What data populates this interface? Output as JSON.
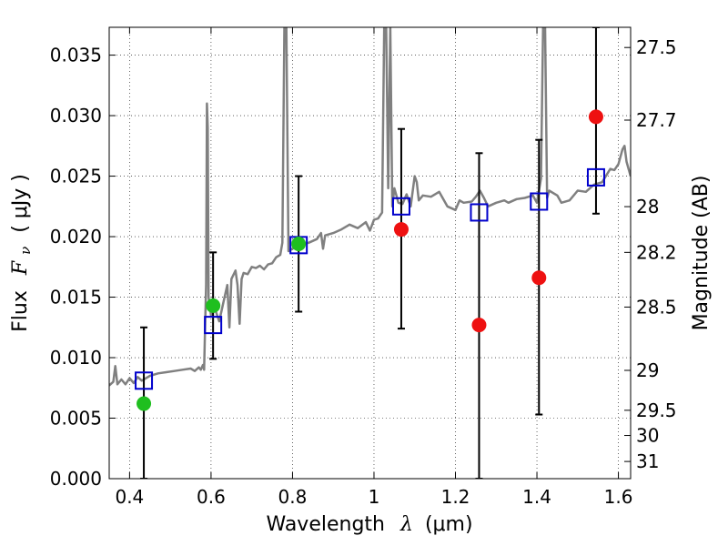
{
  "chart_data": {
    "type": "scatter",
    "xlabel": "Wavelength",
    "xlabel_symbol": "λ",
    "xlabel_unit": "(μm)",
    "ylabel": "Flux",
    "ylabel_symbol": "F",
    "ylabel_subscript": "ν",
    "ylabel_unit": "( μJy )",
    "y2label": "Magnitude (AB)",
    "xlim": [
      0.35,
      1.63
    ],
    "ylim": [
      0.0,
      0.0373
    ],
    "grid": true,
    "x_ticks": [
      0.4,
      0.6,
      0.8,
      1.0,
      1.2,
      1.4,
      1.6
    ],
    "x_tick_labels": [
      "0.4",
      "0.6",
      "0.8",
      "1",
      "1.2",
      "1.4",
      "1.6"
    ],
    "y_ticks": [
      0.0,
      0.005,
      0.01,
      0.015,
      0.02,
      0.025,
      0.03,
      0.035
    ],
    "y_tick_labels": [
      "0.000",
      "0.005",
      "0.010",
      "0.015",
      "0.020",
      "0.025",
      "0.030",
      "0.035"
    ],
    "y2_tick_labels": [
      "27.5",
      "27.7",
      "28",
      "28.2",
      "28.5",
      "29",
      "29.5",
      "30",
      "31"
    ],
    "y2_tick_flux": [
      0.03563,
      0.02963,
      0.02248,
      0.0187,
      0.01418,
      0.00895,
      0.00565,
      0.00357,
      0.00142
    ],
    "colors": {
      "spectrum": "#808080",
      "green_points": "#1fbf1f",
      "red_points": "#ee1111",
      "model_squares": "#0000cc",
      "error_bars": "#000000"
    },
    "spectrum": [
      [
        0.35,
        0.0077
      ],
      [
        0.36,
        0.008
      ],
      [
        0.365,
        0.0093
      ],
      [
        0.37,
        0.0078
      ],
      [
        0.38,
        0.0082
      ],
      [
        0.39,
        0.0078
      ],
      [
        0.4,
        0.0083
      ],
      [
        0.41,
        0.0079
      ],
      [
        0.42,
        0.0084
      ],
      [
        0.43,
        0.0081
      ],
      [
        0.45,
        0.0085
      ],
      [
        0.47,
        0.0087
      ],
      [
        0.49,
        0.0088
      ],
      [
        0.51,
        0.0089
      ],
      [
        0.53,
        0.009
      ],
      [
        0.55,
        0.0091
      ],
      [
        0.56,
        0.0089
      ],
      [
        0.57,
        0.0092
      ],
      [
        0.575,
        0.009
      ],
      [
        0.58,
        0.0094
      ],
      [
        0.583,
        0.009
      ],
      [
        0.585,
        0.012
      ],
      [
        0.588,
        0.016
      ],
      [
        0.59,
        0.031
      ],
      [
        0.592,
        0.029
      ],
      [
        0.594,
        0.015
      ],
      [
        0.6,
        0.0135
      ],
      [
        0.61,
        0.014
      ],
      [
        0.62,
        0.013
      ],
      [
        0.63,
        0.0145
      ],
      [
        0.64,
        0.016
      ],
      [
        0.645,
        0.0125
      ],
      [
        0.65,
        0.0165
      ],
      [
        0.66,
        0.0172
      ],
      [
        0.665,
        0.016
      ],
      [
        0.67,
        0.0128
      ],
      [
        0.675,
        0.0165
      ],
      [
        0.68,
        0.017
      ],
      [
        0.69,
        0.0169
      ],
      [
        0.7,
        0.0175
      ],
      [
        0.71,
        0.0174
      ],
      [
        0.72,
        0.0176
      ],
      [
        0.73,
        0.0173
      ],
      [
        0.74,
        0.0177
      ],
      [
        0.75,
        0.0178
      ],
      [
        0.76,
        0.0183
      ],
      [
        0.77,
        0.0185
      ],
      [
        0.775,
        0.0195
      ],
      [
        0.78,
        0.0373
      ],
      [
        0.785,
        0.0373
      ],
      [
        0.79,
        0.0188
      ],
      [
        0.8,
        0.019
      ],
      [
        0.82,
        0.0193
      ],
      [
        0.84,
        0.0195
      ],
      [
        0.86,
        0.0198
      ],
      [
        0.87,
        0.0203
      ],
      [
        0.875,
        0.019
      ],
      [
        0.88,
        0.0201
      ],
      [
        0.9,
        0.0203
      ],
      [
        0.92,
        0.0206
      ],
      [
        0.94,
        0.021
      ],
      [
        0.96,
        0.0207
      ],
      [
        0.98,
        0.0212
      ],
      [
        0.99,
        0.0205
      ],
      [
        1.0,
        0.0214
      ],
      [
        1.01,
        0.0215
      ],
      [
        1.02,
        0.022
      ],
      [
        1.025,
        0.0373
      ],
      [
        1.03,
        0.0373
      ],
      [
        1.035,
        0.024
      ],
      [
        1.04,
        0.0373
      ],
      [
        1.045,
        0.0225
      ],
      [
        1.05,
        0.024
      ],
      [
        1.06,
        0.0228
      ],
      [
        1.07,
        0.0227
      ],
      [
        1.08,
        0.0235
      ],
      [
        1.09,
        0.0225
      ],
      [
        1.1,
        0.025
      ],
      [
        1.105,
        0.0245
      ],
      [
        1.11,
        0.023
      ],
      [
        1.12,
        0.0234
      ],
      [
        1.14,
        0.0233
      ],
      [
        1.16,
        0.0237
      ],
      [
        1.18,
        0.0225
      ],
      [
        1.2,
        0.0222
      ],
      [
        1.21,
        0.023
      ],
      [
        1.22,
        0.0228
      ],
      [
        1.24,
        0.0229
      ],
      [
        1.25,
        0.0233
      ],
      [
        1.26,
        0.0238
      ],
      [
        1.27,
        0.0232
      ],
      [
        1.28,
        0.0225
      ],
      [
        1.3,
        0.0228
      ],
      [
        1.32,
        0.023
      ],
      [
        1.33,
        0.0228
      ],
      [
        1.35,
        0.0231
      ],
      [
        1.37,
        0.0232
      ],
      [
        1.39,
        0.0234
      ],
      [
        1.4,
        0.0228
      ],
      [
        1.41,
        0.0248
      ],
      [
        1.415,
        0.0373
      ],
      [
        1.42,
        0.0373
      ],
      [
        1.425,
        0.0232
      ],
      [
        1.43,
        0.0238
      ],
      [
        1.45,
        0.0234
      ],
      [
        1.46,
        0.0228
      ],
      [
        1.48,
        0.023
      ],
      [
        1.5,
        0.0238
      ],
      [
        1.52,
        0.0237
      ],
      [
        1.54,
        0.0243
      ],
      [
        1.56,
        0.0245
      ],
      [
        1.58,
        0.0256
      ],
      [
        1.59,
        0.0255
      ],
      [
        1.6,
        0.026
      ],
      [
        1.61,
        0.0272
      ],
      [
        1.615,
        0.0275
      ],
      [
        1.62,
        0.0262
      ],
      [
        1.63,
        0.025
      ]
    ],
    "model_squares": [
      {
        "x": 0.435,
        "y": 0.0081
      },
      {
        "x": 0.605,
        "y": 0.0127
      },
      {
        "x": 0.815,
        "y": 0.0193
      },
      {
        "x": 1.067,
        "y": 0.0225
      },
      {
        "x": 1.258,
        "y": 0.022
      },
      {
        "x": 1.405,
        "y": 0.0229
      },
      {
        "x": 1.545,
        "y": 0.0249
      }
    ],
    "green_points": [
      {
        "x": 0.435,
        "y": 0.0062
      },
      {
        "x": 0.605,
        "y": 0.0143
      },
      {
        "x": 0.815,
        "y": 0.0194
      }
    ],
    "red_points": [
      {
        "x": 1.067,
        "y": 0.0206
      },
      {
        "x": 1.258,
        "y": 0.0127
      },
      {
        "x": 1.405,
        "y": 0.0166
      },
      {
        "x": 1.545,
        "y": 0.0299
      }
    ],
    "error_bars": [
      {
        "x": 0.435,
        "low": 0.0,
        "high": 0.0125
      },
      {
        "x": 0.605,
        "low": 0.0099,
        "high": 0.0187
      },
      {
        "x": 0.815,
        "low": 0.0138,
        "high": 0.025
      },
      {
        "x": 1.067,
        "low": 0.0124,
        "high": 0.0289
      },
      {
        "x": 1.258,
        "low": 0.0,
        "high": 0.0269
      },
      {
        "x": 1.405,
        "low": 0.0053,
        "high": 0.028
      },
      {
        "x": 1.545,
        "low": 0.0219,
        "high": 0.0373
      }
    ]
  }
}
